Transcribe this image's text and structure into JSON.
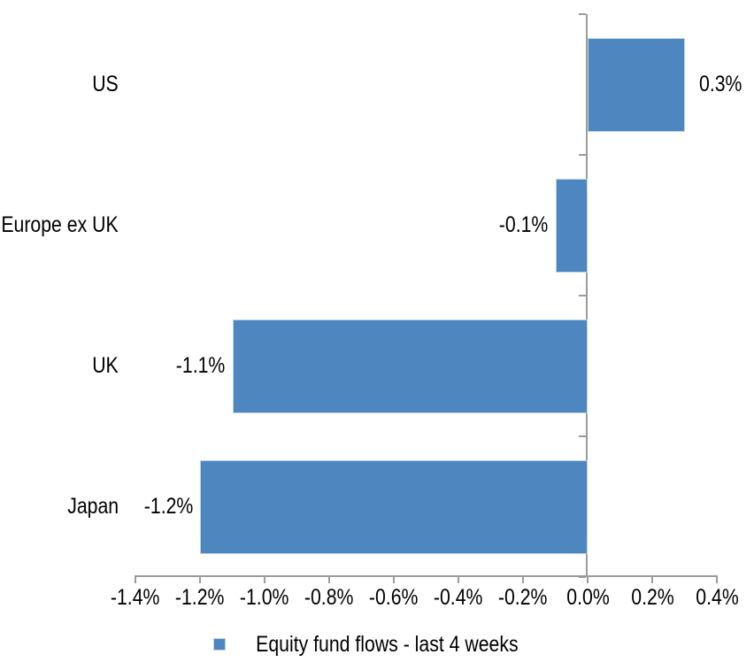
{
  "chart_data": {
    "type": "bar",
    "orientation": "horizontal",
    "title": "",
    "categories": [
      "US",
      "Europe ex UK",
      "UK",
      "Japan"
    ],
    "series": [
      {
        "name": "Equity fund flows - last 4 weeks",
        "values": [
          0.3,
          -0.1,
          -1.1,
          -1.2
        ],
        "data_labels": [
          "0.3%",
          "-0.1%",
          "-1.1%",
          "-1.2%"
        ]
      }
    ],
    "xlabel": "",
    "ylabel": "",
    "xlim": [
      -1.4,
      0.4
    ],
    "x_tick_values": [
      -1.4,
      -1.2,
      -1.0,
      -0.8,
      -0.6,
      -0.4,
      -0.2,
      0.0,
      0.2,
      0.4
    ],
    "x_ticks": [
      "-1.4%",
      "-1.2%",
      "-1.0%",
      "-0.8%",
      "-0.6%",
      "-0.4%",
      "-0.2%",
      "0.0%",
      "0.2%",
      "0.4%"
    ],
    "grid": false,
    "legend": "Equity fund flows - last 4 weeks",
    "legend_position": "bottom",
    "colors": {
      "bar": "#4e86c0",
      "bar_border": "#b9d3ec",
      "axis": "#9b9b9b",
      "text": "#000000",
      "background": "#ffffff"
    }
  }
}
